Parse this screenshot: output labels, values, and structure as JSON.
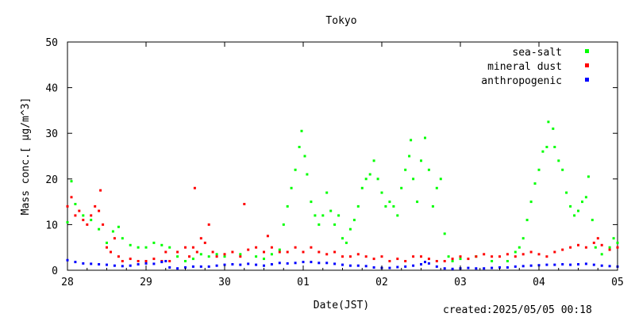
{
  "chart_data": {
    "type": "scatter",
    "title": "Tokyo",
    "xlabel": "Date(JST)",
    "ylabel": "Mass conc.[ μg/m^3]",
    "ylim": [
      0,
      50
    ],
    "yticks": [
      0,
      10,
      20,
      30,
      40,
      50
    ],
    "xticks": [
      "28",
      "29",
      "30",
      "01",
      "02",
      "03",
      "04",
      "05"
    ],
    "xrange_days": [
      0,
      7
    ],
    "legend_position": "top-right",
    "grid": false,
    "footer": "created:2025/05/05 00:18",
    "series": [
      {
        "name": "sea-salt",
        "color": "#00ff00",
        "points": [
          [
            0.0,
            10.5
          ],
          [
            0.05,
            19.5
          ],
          [
            0.1,
            14.5
          ],
          [
            0.2,
            12.0
          ],
          [
            0.3,
            11.0
          ],
          [
            0.4,
            9.0
          ],
          [
            0.5,
            6.0
          ],
          [
            0.58,
            8.5
          ],
          [
            0.65,
            9.5
          ],
          [
            0.7,
            7.0
          ],
          [
            0.8,
            5.5
          ],
          [
            0.9,
            5.0
          ],
          [
            1.0,
            5.0
          ],
          [
            1.1,
            6.0
          ],
          [
            1.2,
            5.5
          ],
          [
            1.3,
            5.0
          ],
          [
            1.4,
            3.0
          ],
          [
            1.5,
            2.0
          ],
          [
            1.6,
            2.5
          ],
          [
            1.7,
            3.5
          ],
          [
            1.8,
            3.0
          ],
          [
            1.9,
            3.5
          ],
          [
            2.0,
            3.0
          ],
          [
            2.2,
            3.5
          ],
          [
            2.4,
            3.0
          ],
          [
            2.5,
            2.5
          ],
          [
            2.6,
            3.5
          ],
          [
            2.7,
            4.5
          ],
          [
            2.75,
            10.0
          ],
          [
            2.8,
            14.0
          ],
          [
            2.85,
            18.0
          ],
          [
            2.9,
            22.0
          ],
          [
            2.95,
            27.0
          ],
          [
            2.98,
            30.5
          ],
          [
            3.02,
            25.0
          ],
          [
            3.05,
            21.0
          ],
          [
            3.1,
            15.0
          ],
          [
            3.15,
            12.0
          ],
          [
            3.2,
            10.0
          ],
          [
            3.25,
            12.0
          ],
          [
            3.3,
            17.0
          ],
          [
            3.35,
            13.0
          ],
          [
            3.4,
            10.0
          ],
          [
            3.45,
            12.0
          ],
          [
            3.5,
            7.0
          ],
          [
            3.55,
            6.0
          ],
          [
            3.6,
            9.0
          ],
          [
            3.65,
            11.0
          ],
          [
            3.7,
            14.0
          ],
          [
            3.75,
            18.0
          ],
          [
            3.8,
            20.0
          ],
          [
            3.85,
            21.0
          ],
          [
            3.9,
            24.0
          ],
          [
            3.95,
            20.0
          ],
          [
            4.0,
            17.0
          ],
          [
            4.05,
            14.0
          ],
          [
            4.1,
            15.0
          ],
          [
            4.15,
            14.0
          ],
          [
            4.2,
            12.0
          ],
          [
            4.25,
            18.0
          ],
          [
            4.3,
            22.0
          ],
          [
            4.35,
            25.0
          ],
          [
            4.37,
            28.5
          ],
          [
            4.4,
            20.0
          ],
          [
            4.45,
            15.0
          ],
          [
            4.5,
            24.0
          ],
          [
            4.55,
            29.0
          ],
          [
            4.6,
            22.0
          ],
          [
            4.65,
            14.0
          ],
          [
            4.7,
            18.0
          ],
          [
            4.75,
            20.0
          ],
          [
            4.8,
            8.0
          ],
          [
            4.85,
            3.0
          ],
          [
            4.9,
            2.0
          ],
          [
            5.0,
            2.5
          ],
          [
            5.2,
            3.0
          ],
          [
            5.4,
            2.0
          ],
          [
            5.6,
            2.0
          ],
          [
            5.7,
            4.0
          ],
          [
            5.75,
            5.0
          ],
          [
            5.8,
            7.0
          ],
          [
            5.85,
            11.0
          ],
          [
            5.9,
            15.0
          ],
          [
            5.95,
            19.0
          ],
          [
            6.0,
            22.0
          ],
          [
            6.05,
            26.0
          ],
          [
            6.1,
            27.0
          ],
          [
            6.12,
            32.5
          ],
          [
            6.18,
            31.0
          ],
          [
            6.2,
            27.0
          ],
          [
            6.25,
            24.0
          ],
          [
            6.3,
            22.0
          ],
          [
            6.35,
            17.0
          ],
          [
            6.4,
            14.0
          ],
          [
            6.45,
            12.0
          ],
          [
            6.5,
            13.0
          ],
          [
            6.55,
            15.0
          ],
          [
            6.6,
            16.0
          ],
          [
            6.63,
            20.5
          ],
          [
            6.68,
            11.0
          ],
          [
            6.72,
            5.0
          ],
          [
            6.8,
            3.5
          ],
          [
            6.9,
            5.0
          ],
          [
            6.95,
            7.0
          ],
          [
            7.0,
            6.0
          ]
        ]
      },
      {
        "name": "mineral dust",
        "color": "#ff0000",
        "points": [
          [
            0.0,
            14.0
          ],
          [
            0.05,
            16.0
          ],
          [
            0.1,
            12.0
          ],
          [
            0.15,
            13.0
          ],
          [
            0.2,
            11.0
          ],
          [
            0.25,
            10.0
          ],
          [
            0.3,
            12.0
          ],
          [
            0.35,
            14.0
          ],
          [
            0.4,
            13.0
          ],
          [
            0.42,
            17.5
          ],
          [
            0.45,
            10.0
          ],
          [
            0.5,
            5.0
          ],
          [
            0.55,
            4.0
          ],
          [
            0.6,
            7.0
          ],
          [
            0.65,
            3.0
          ],
          [
            0.7,
            2.0
          ],
          [
            0.8,
            2.5
          ],
          [
            0.9,
            2.0
          ],
          [
            1.0,
            2.0
          ],
          [
            1.1,
            2.5
          ],
          [
            1.2,
            2.0
          ],
          [
            1.25,
            4.0
          ],
          [
            1.3,
            2.0
          ],
          [
            1.4,
            4.0
          ],
          [
            1.5,
            5.0
          ],
          [
            1.55,
            3.0
          ],
          [
            1.6,
            5.0
          ],
          [
            1.62,
            18.0
          ],
          [
            1.65,
            4.0
          ],
          [
            1.7,
            7.0
          ],
          [
            1.75,
            6.0
          ],
          [
            1.8,
            10.0
          ],
          [
            1.85,
            4.0
          ],
          [
            1.9,
            3.0
          ],
          [
            2.0,
            3.5
          ],
          [
            2.1,
            4.0
          ],
          [
            2.2,
            3.0
          ],
          [
            2.25,
            14.5
          ],
          [
            2.3,
            4.5
          ],
          [
            2.4,
            5.0
          ],
          [
            2.5,
            4.0
          ],
          [
            2.55,
            7.5
          ],
          [
            2.6,
            5.0
          ],
          [
            2.7,
            4.0
          ],
          [
            2.8,
            4.0
          ],
          [
            2.9,
            5.0
          ],
          [
            3.0,
            4.0
          ],
          [
            3.1,
            5.0
          ],
          [
            3.2,
            4.0
          ],
          [
            3.3,
            3.5
          ],
          [
            3.4,
            4.0
          ],
          [
            3.5,
            3.0
          ],
          [
            3.6,
            3.0
          ],
          [
            3.7,
            3.5
          ],
          [
            3.8,
            3.0
          ],
          [
            3.9,
            2.5
          ],
          [
            4.0,
            3.0
          ],
          [
            4.1,
            2.0
          ],
          [
            4.2,
            2.5
          ],
          [
            4.3,
            2.0
          ],
          [
            4.4,
            3.0
          ],
          [
            4.5,
            3.0
          ],
          [
            4.6,
            2.5
          ],
          [
            4.7,
            2.0
          ],
          [
            4.8,
            2.0
          ],
          [
            4.9,
            2.5
          ],
          [
            5.0,
            3.0
          ],
          [
            5.1,
            2.5
          ],
          [
            5.2,
            3.0
          ],
          [
            5.3,
            3.5
          ],
          [
            5.4,
            3.0
          ],
          [
            5.5,
            3.0
          ],
          [
            5.6,
            3.5
          ],
          [
            5.7,
            3.0
          ],
          [
            5.8,
            3.5
          ],
          [
            5.9,
            4.0
          ],
          [
            6.0,
            3.5
          ],
          [
            6.1,
            3.0
          ],
          [
            6.2,
            4.0
          ],
          [
            6.3,
            4.5
          ],
          [
            6.4,
            5.0
          ],
          [
            6.5,
            5.5
          ],
          [
            6.6,
            5.0
          ],
          [
            6.7,
            6.0
          ],
          [
            6.75,
            7.0
          ],
          [
            6.8,
            5.5
          ],
          [
            6.9,
            4.5
          ],
          [
            7.0,
            5.0
          ]
        ]
      },
      {
        "name": "anthropogenic",
        "color": "#0000ff",
        "points": [
          [
            0.0,
            2.2
          ],
          [
            0.1,
            1.8
          ],
          [
            0.2,
            1.5
          ],
          [
            0.3,
            1.4
          ],
          [
            0.4,
            1.3
          ],
          [
            0.5,
            1.2
          ],
          [
            0.6,
            1.0
          ],
          [
            0.7,
            0.9
          ],
          [
            0.8,
            1.0
          ],
          [
            0.9,
            1.3
          ],
          [
            1.0,
            1.5
          ],
          [
            1.1,
            1.4
          ],
          [
            1.2,
            1.8
          ],
          [
            1.25,
            2.0
          ],
          [
            1.3,
            0.6
          ],
          [
            1.4,
            0.4
          ],
          [
            1.5,
            0.6
          ],
          [
            1.6,
            0.8
          ],
          [
            1.7,
            0.8
          ],
          [
            1.8,
            0.8
          ],
          [
            1.9,
            1.0
          ],
          [
            2.0,
            1.2
          ],
          [
            2.1,
            1.3
          ],
          [
            2.2,
            1.2
          ],
          [
            2.3,
            1.4
          ],
          [
            2.4,
            1.2
          ],
          [
            2.5,
            1.0
          ],
          [
            2.6,
            1.3
          ],
          [
            2.7,
            1.6
          ],
          [
            2.8,
            1.5
          ],
          [
            2.9,
            1.6
          ],
          [
            3.0,
            1.8
          ],
          [
            3.1,
            1.8
          ],
          [
            3.2,
            1.6
          ],
          [
            3.3,
            1.6
          ],
          [
            3.4,
            1.4
          ],
          [
            3.5,
            1.2
          ],
          [
            3.6,
            1.0
          ],
          [
            3.7,
            1.0
          ],
          [
            3.8,
            0.9
          ],
          [
            3.9,
            0.6
          ],
          [
            4.0,
            0.5
          ],
          [
            4.1,
            0.5
          ],
          [
            4.2,
            0.7
          ],
          [
            4.3,
            0.8
          ],
          [
            4.4,
            1.0
          ],
          [
            4.5,
            1.3
          ],
          [
            4.55,
            1.8
          ],
          [
            4.6,
            1.5
          ],
          [
            4.7,
            0.8
          ],
          [
            4.8,
            0.4
          ],
          [
            4.9,
            0.3
          ],
          [
            5.0,
            0.4
          ],
          [
            5.1,
            0.5
          ],
          [
            5.2,
            0.4
          ],
          [
            5.3,
            0.4
          ],
          [
            5.4,
            0.5
          ],
          [
            5.5,
            0.6
          ],
          [
            5.6,
            0.6
          ],
          [
            5.7,
            0.8
          ],
          [
            5.8,
            0.9
          ],
          [
            5.9,
            1.0
          ],
          [
            6.0,
            1.1
          ],
          [
            6.1,
            1.2
          ],
          [
            6.2,
            1.2
          ],
          [
            6.3,
            1.3
          ],
          [
            6.4,
            1.2
          ],
          [
            6.5,
            1.3
          ],
          [
            6.6,
            1.4
          ],
          [
            6.7,
            1.2
          ],
          [
            6.8,
            1.0
          ],
          [
            6.9,
            0.9
          ],
          [
            7.0,
            0.8
          ]
        ]
      }
    ]
  }
}
